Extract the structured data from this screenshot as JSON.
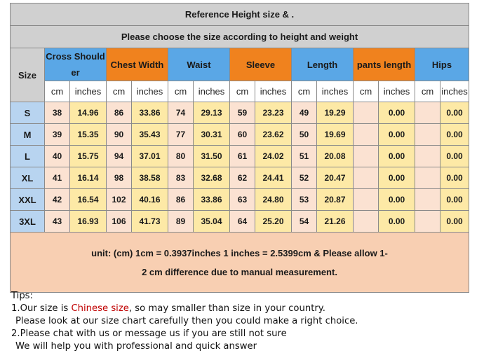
{
  "header": {
    "title": "Reference Height size  & .",
    "subtitle": "Please choose the size according to height and weight",
    "size_label": "Size"
  },
  "categories": [
    {
      "label": "Cross Shoulder",
      "color": "#5aa7e6"
    },
    {
      "label": "Chest Width",
      "color": "#f0821e"
    },
    {
      "label": "Waist",
      "color": "#5aa7e6"
    },
    {
      "label": "Sleeve",
      "color": "#f0821e"
    },
    {
      "label": "Length",
      "color": "#5aa7e6"
    },
    {
      "label": "pants length",
      "color": "#f0821e"
    },
    {
      "label": "Hips",
      "color": "#5aa7e6"
    }
  ],
  "units": [
    "cm",
    "inches",
    "cm",
    "inches",
    "cm",
    "inches",
    "cm",
    "inches",
    "cm",
    "inches",
    "cm",
    "inches",
    "cm",
    "inches"
  ],
  "rows": [
    {
      "size": "S",
      "values": [
        "38",
        "14.96",
        "86",
        "33.86",
        "74",
        "29.13",
        "59",
        "23.23",
        "49",
        "19.29",
        "",
        "0.00",
        "",
        "0.00"
      ]
    },
    {
      "size": "M",
      "values": [
        "39",
        "15.35",
        "90",
        "35.43",
        "77",
        "30.31",
        "60",
        "23.62",
        "50",
        "19.69",
        "",
        "0.00",
        "",
        "0.00"
      ]
    },
    {
      "size": "L",
      "values": [
        "40",
        "15.75",
        "94",
        "37.01",
        "80",
        "31.50",
        "61",
        "24.02",
        "51",
        "20.08",
        "",
        "0.00",
        "",
        "0.00"
      ]
    },
    {
      "size": "XL",
      "values": [
        "41",
        "16.14",
        "98",
        "38.58",
        "83",
        "32.68",
        "62",
        "24.41",
        "52",
        "20.47",
        "",
        "0.00",
        "",
        "0.00"
      ]
    },
    {
      "size": "XXL",
      "values": [
        "42",
        "16.54",
        "102",
        "40.16",
        "86",
        "33.86",
        "63",
        "24.80",
        "53",
        "20.87",
        "",
        "0.00",
        "",
        "0.00"
      ]
    },
    {
      "size": "3XL",
      "values": [
        "43",
        "16.93",
        "106",
        "41.73",
        "89",
        "35.04",
        "64",
        "25.20",
        "54",
        "21.26",
        "",
        "0.00",
        "",
        "0.00"
      ]
    }
  ],
  "note": {
    "line1": "unit: (cm)  1cm = 0.3937inches  1 inches = 2.5399cm  &    Please allow 1-",
    "line2": "2 cm difference due to manual measurement."
  },
  "tips": {
    "heading": "Tips:",
    "line1_pre": "1.Our size is ",
    "line1_highlight": "Chinese size",
    "line1_post": ", so may smaller than size in your country.",
    "line2": "Please look at our size chart carefully then you could make a right choice.",
    "line3": "2.Please chat with us or message us if you are still not sure",
    "line4": "We will help you with professional and quick answer"
  }
}
